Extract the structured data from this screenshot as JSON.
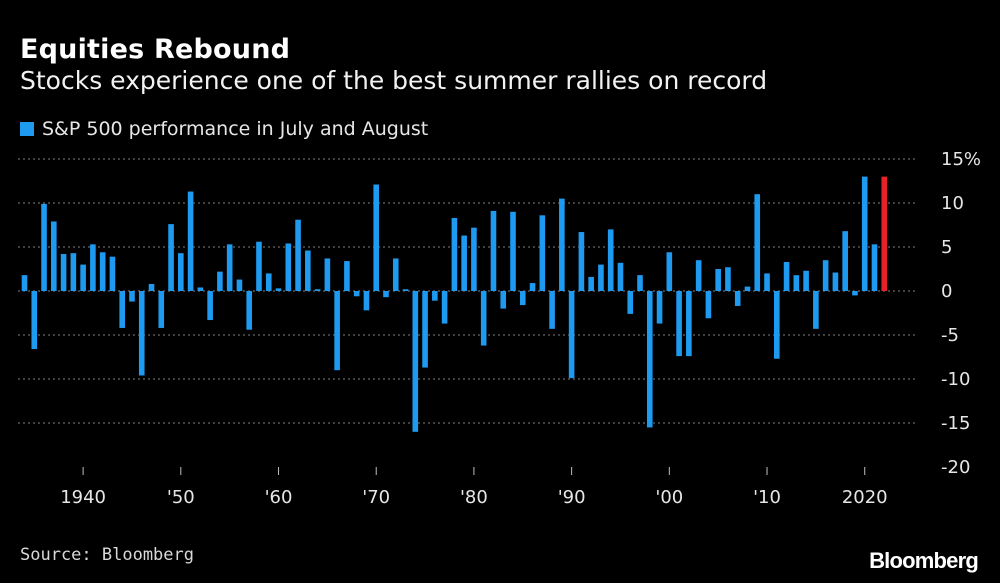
{
  "colors": {
    "background": "#000000",
    "bar": "#1e9bf0",
    "highlight": "#e8202a",
    "grid": "#7f7f7f"
  },
  "chart_data": {
    "type": "bar",
    "title": "Equities Rebound",
    "subtitle": "Stocks experience one of the best summer rallies on record",
    "legend": [
      "S&P 500 performance in July and August"
    ],
    "source": "Source: Bloomberg",
    "brand": "Bloomberg",
    "ylim": [
      -20,
      15
    ],
    "y_ticks": [
      15,
      10,
      5,
      0,
      -5,
      -10,
      -15,
      -20
    ],
    "y_tick_labels": [
      "15%",
      "10",
      "5",
      "0",
      "-5",
      "-10",
      "-15",
      "-20"
    ],
    "x_ticks": [
      1940,
      1950,
      1960,
      1970,
      1980,
      1990,
      2000,
      2010,
      2020
    ],
    "x_tick_labels": [
      "1940",
      "'50",
      "'60",
      "'70",
      "'80",
      "'90",
      "'00",
      "'10",
      "2020"
    ],
    "highlight_year": 2022,
    "x": [
      1934,
      1935,
      1936,
      1937,
      1938,
      1939,
      1940,
      1941,
      1942,
      1943,
      1944,
      1945,
      1946,
      1947,
      1948,
      1949,
      1950,
      1951,
      1952,
      1953,
      1954,
      1955,
      1956,
      1957,
      1958,
      1959,
      1960,
      1961,
      1962,
      1963,
      1964,
      1965,
      1966,
      1967,
      1968,
      1969,
      1970,
      1971,
      1972,
      1973,
      1974,
      1975,
      1976,
      1977,
      1978,
      1979,
      1980,
      1981,
      1982,
      1983,
      1984,
      1985,
      1986,
      1987,
      1988,
      1989,
      1990,
      1991,
      1992,
      1993,
      1994,
      1995,
      1996,
      1997,
      1998,
      1999,
      2000,
      2001,
      2002,
      2003,
      2004,
      2005,
      2006,
      2007,
      2008,
      2009,
      2010,
      2011,
      2012,
      2013,
      2014,
      2015,
      2016,
      2017,
      2018,
      2019,
      2020,
      2021,
      2022
    ],
    "values": [
      1.8,
      -6.6,
      9.9,
      7.9,
      4.2,
      4.3,
      3.0,
      5.3,
      4.4,
      3.9,
      -4.2,
      -1.2,
      -9.6,
      0.8,
      -4.2,
      7.6,
      4.3,
      11.3,
      0.4,
      -3.3,
      2.2,
      5.3,
      1.3,
      -4.4,
      5.6,
      2.0,
      0.3,
      5.4,
      8.1,
      4.6,
      0.2,
      3.7,
      -9.0,
      3.4,
      -0.6,
      -2.2,
      12.1,
      -0.7,
      3.7,
      0.2,
      -16.0,
      -8.7,
      -1.1,
      -3.7,
      8.3,
      6.3,
      7.2,
      -6.2,
      9.1,
      -2.0,
      9.0,
      -1.6,
      0.9,
      8.6,
      -4.3,
      10.5,
      -9.9,
      6.7,
      1.6,
      3.0,
      7.0,
      3.2,
      -2.6,
      1.8,
      -15.5,
      -3.7,
      4.4,
      -7.4,
      -7.4,
      3.5,
      -3.1,
      2.5,
      2.7,
      -1.7,
      0.5,
      11.0,
      2.0,
      -7.7,
      3.3,
      1.8,
      2.3,
      -4.3,
      3.5,
      2.1,
      6.8,
      -0.5,
      13.0,
      5.3,
      13.0
    ]
  }
}
